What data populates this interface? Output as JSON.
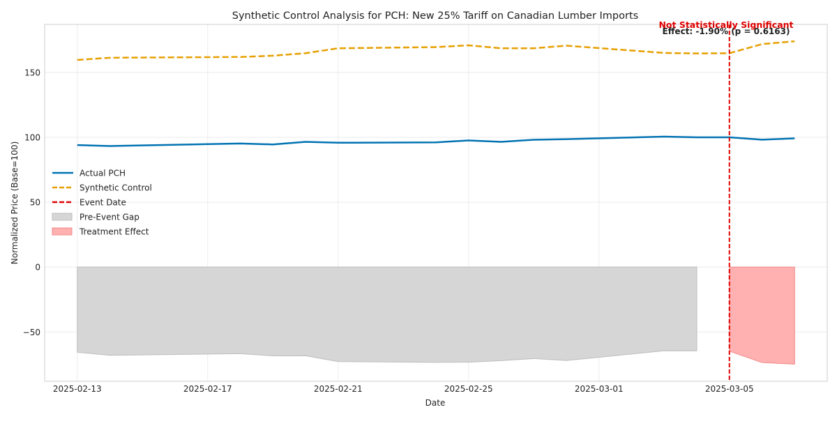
{
  "chart_data": {
    "type": "line",
    "title": "Synthetic Control Analysis for PCH: New 25% Tariff on Canadian Lumber Imports",
    "xlabel": "Date",
    "ylabel": "Normalized Price (Base=100)",
    "ylim": [
      -88,
      187
    ],
    "yticks": [
      -50,
      0,
      50,
      100,
      150
    ],
    "ytick_labels": [
      "−50",
      "0",
      "50",
      "100",
      "150"
    ],
    "xlim": [
      "2025-02-12",
      "2025-03-08"
    ],
    "xticks": [
      "2025-02-13",
      "2025-02-17",
      "2025-02-21",
      "2025-02-25",
      "2025-03-01",
      "2025-03-05"
    ],
    "grid": true,
    "legend_position": "center-left",
    "legend": [
      {
        "label": "Actual PCH",
        "kind": "line",
        "color": "#0072b2",
        "dash": "solid"
      },
      {
        "label": "Synthetic Control",
        "kind": "line",
        "color": "#e69f00",
        "dash": "dashed"
      },
      {
        "label": "Event Date",
        "kind": "line",
        "color": "#e00000",
        "dash": "dashed"
      },
      {
        "label": "Pre-Event Gap",
        "kind": "patch",
        "color": "#d6d6d6"
      },
      {
        "label": "Treatment Effect",
        "kind": "patch",
        "color": "#ffb0b0"
      }
    ],
    "event_date": "2025-03-05",
    "annotations": {
      "significance": "Not Statistically Significant",
      "effect": "Effect: -1.90% (p = 0.6163)"
    },
    "series": [
      {
        "name": "Actual PCH",
        "color": "#0072b2",
        "x": [
          "2025-02-13",
          "2025-02-14",
          "2025-02-18",
          "2025-02-19",
          "2025-02-20",
          "2025-02-21",
          "2025-02-24",
          "2025-02-25",
          "2025-02-26",
          "2025-02-27",
          "2025-02-28",
          "2025-03-03",
          "2025-03-04",
          "2025-03-05",
          "2025-03-06",
          "2025-03-07"
        ],
        "values": [
          94.0,
          93.3,
          95.2,
          94.5,
          96.5,
          95.8,
          96.1,
          97.6,
          96.5,
          98.1,
          98.6,
          100.5,
          100.0,
          100.0,
          98.2,
          99.2
        ]
      },
      {
        "name": "Synthetic Control",
        "color": "#e69f00",
        "x": [
          "2025-02-13",
          "2025-02-14",
          "2025-02-18",
          "2025-02-19",
          "2025-02-20",
          "2025-02-21",
          "2025-02-24",
          "2025-02-25",
          "2025-02-26",
          "2025-02-27",
          "2025-02-28",
          "2025-03-03",
          "2025-03-04",
          "2025-03-05",
          "2025-03-06",
          "2025-03-07"
        ],
        "values": [
          159.6,
          161.3,
          161.9,
          162.9,
          164.8,
          168.6,
          169.5,
          170.9,
          168.6,
          168.6,
          170.6,
          165.0,
          164.6,
          164.8,
          171.8,
          174.0
        ]
      },
      {
        "name": "Pre-Event Gap",
        "color": "#d6d6d6",
        "x": [
          "2025-02-13",
          "2025-02-14",
          "2025-02-18",
          "2025-02-19",
          "2025-02-20",
          "2025-02-21",
          "2025-02-24",
          "2025-02-25",
          "2025-02-26",
          "2025-02-27",
          "2025-02-28",
          "2025-03-03",
          "2025-03-04"
        ],
        "values": [
          -65.6,
          -68.0,
          -66.7,
          -68.4,
          -68.3,
          -72.8,
          -73.4,
          -73.3,
          -72.1,
          -70.5,
          -72.0,
          -64.5,
          -64.6
        ]
      },
      {
        "name": "Treatment Effect",
        "color": "#ffb0b0",
        "x": [
          "2025-03-05",
          "2025-03-06",
          "2025-03-07"
        ],
        "values": [
          -64.8,
          -73.6,
          -74.8
        ]
      }
    ]
  }
}
